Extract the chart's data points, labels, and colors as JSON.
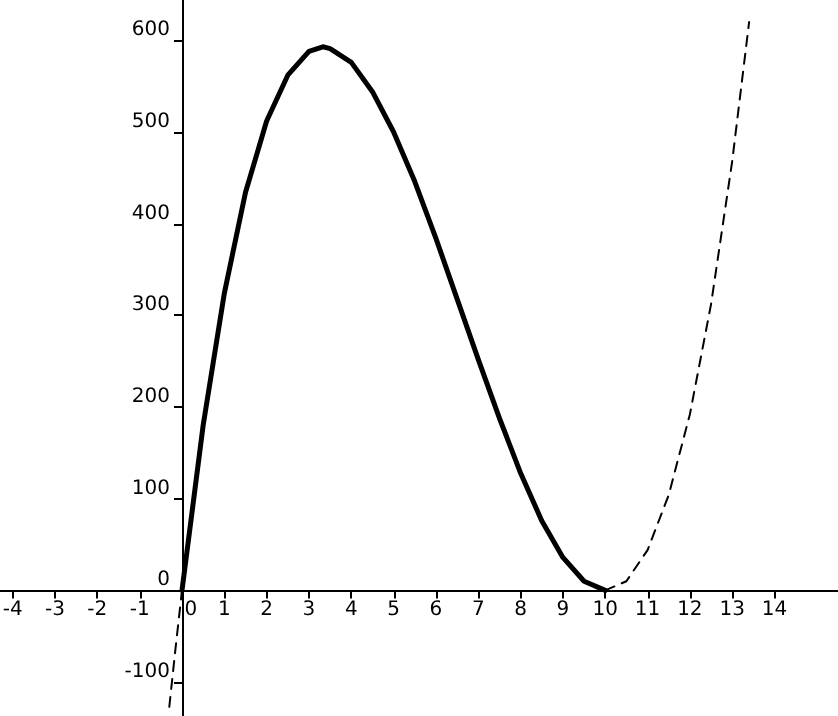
{
  "chart_data": {
    "type": "line",
    "grid": false,
    "marker": "none",
    "xlim": [
      -4.3,
      15.5
    ],
    "ylim": [
      -137,
      644
    ],
    "xticks": [
      -4,
      -3,
      -2,
      -1,
      0,
      1,
      2,
      3,
      4,
      5,
      6,
      7,
      8,
      9,
      10,
      11,
      12,
      13,
      14
    ],
    "yticks": [
      -100,
      0,
      100,
      200,
      300,
      400,
      500,
      600
    ],
    "series": [
      {
        "color": "#000000",
        "line_style": "solid",
        "x": [
          0,
          0.5,
          1,
          1.5,
          2,
          2.5,
          3,
          3.33,
          3.5,
          4,
          4.5,
          5,
          5.5,
          6,
          6.5,
          7,
          7.5,
          8,
          8.5,
          9,
          9.5,
          10
        ],
        "values": [
          0,
          180,
          324,
          434,
          512,
          562,
          588,
          593,
          591,
          576,
          544,
          500,
          446,
          384,
          318,
          252,
          188,
          128,
          76,
          36,
          10,
          0
        ]
      },
      {
        "color": "#000000",
        "line_style": "dashed",
        "x": [
          -0.3,
          -0.15,
          0
        ],
        "values": [
          -127,
          -62,
          0
        ]
      },
      {
        "color": "#000000",
        "line_style": "dashed",
        "x": [
          10,
          10.5,
          11,
          11.5,
          12,
          12.5,
          13,
          13.4
        ],
        "values": [
          0,
          10,
          44,
          104,
          192,
          312,
          468,
          620
        ]
      }
    ]
  }
}
